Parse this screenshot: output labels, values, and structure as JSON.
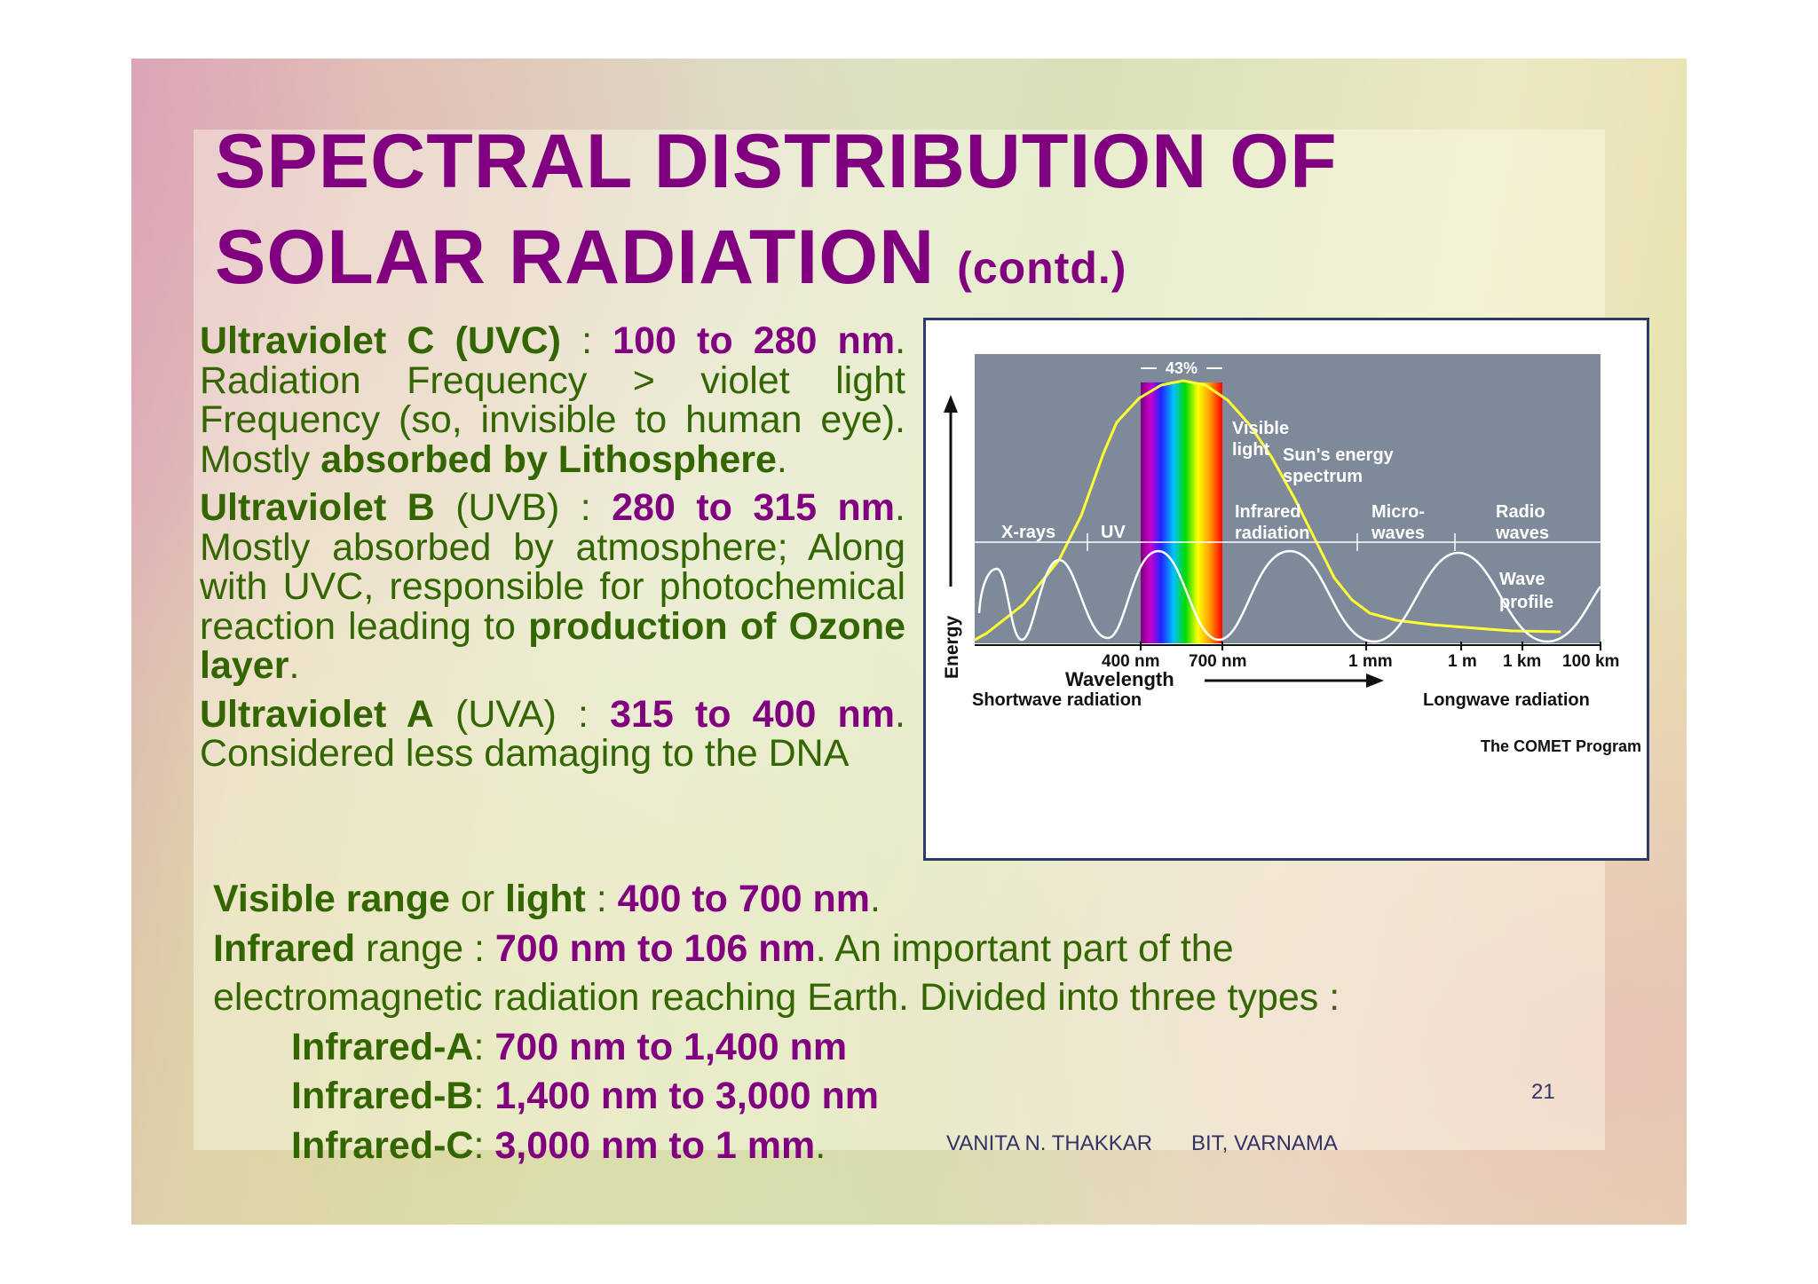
{
  "slide": {
    "title_line1": "SPECTRAL DISTRIBUTION OF",
    "title_line2": "SOLAR RADIATION",
    "title_suffix": "(contd.)",
    "uvc": {
      "name": "Ultraviolet C (UVC)",
      "sep": " : ",
      "range": "100 to 280 nm",
      "text1": ". Radiation Frequency > violet light Frequency (so, invisible to human eye). Mostly ",
      "bold": "absorbed by Lithosphere",
      "end": "."
    },
    "uvb": {
      "name": "Ultraviolet B",
      "abbr": " (UVB) : ",
      "range": "280 to 315 nm",
      "text1": ". Mostly absorbed by atmosphere; Along with UVC, responsible for photochemical reaction leading to ",
      "bold": "production of Ozone layer",
      "end": "."
    },
    "uva": {
      "name": "Ultraviolet A",
      "abbr": " (UVA) : ",
      "range": "315 to 400 nm",
      "text1": ". Considered less damaging to the DNA"
    },
    "visible": {
      "b1": "Visible range",
      "t1": " or ",
      "b2": "light",
      "t2": " : ",
      "range": "400 to 700 nm",
      "end": "."
    },
    "infrared": {
      "b1": "Infrared",
      "t1": " range : ",
      "range": "700 nm to 106 nm",
      "t2": ". An important part of the",
      "line2": "electromagnetic radiation reaching Earth. Divided into three types :"
    },
    "ir_types": [
      {
        "label": "Infrared-A",
        "sep": ": ",
        "range": "700 nm to 1,400 nm",
        "end": ""
      },
      {
        "label": "Infrared-B",
        "sep": ": ",
        "range": "1,400 nm to 3,000 nm",
        "end": ""
      },
      {
        "label": "Infrared-C",
        "sep": ": ",
        "range": "3,000 nm to 1 mm",
        "end": "."
      }
    ],
    "footer_author": "VANITA N. THAKKAR",
    "footer_org": "BIT, VARNAMA",
    "page_number": "21"
  },
  "figure": {
    "percent": "43%",
    "energy_label": "Energy",
    "curve_label_1": "Sun's energy",
    "curve_label_2": "spectrum",
    "visible_1": "Visible",
    "visible_2": "light",
    "bands": [
      {
        "l1": "X-rays",
        "l2": ""
      },
      {
        "l1": "UV",
        "l2": ""
      },
      {
        "l1": "Infrared",
        "l2": "radiation"
      },
      {
        "l1": "Micro-",
        "l2": "waves"
      },
      {
        "l1": "Radio",
        "l2": "waves"
      }
    ],
    "wave_profile_1": "Wave",
    "wave_profile_2": "profile",
    "ticks": [
      "400 nm",
      "700 nm",
      "1 mm",
      "1 m",
      "1 km",
      "100 km"
    ],
    "wavelength_label": "Wavelength",
    "shortwave": "Shortwave radiation",
    "longwave": "Longwave radiation",
    "credit": "The COMET Program",
    "colors": {
      "plot_bg": "#7e8a99",
      "curve": "#ffff33",
      "wave": "#ffffff",
      "text": "#111111"
    }
  }
}
